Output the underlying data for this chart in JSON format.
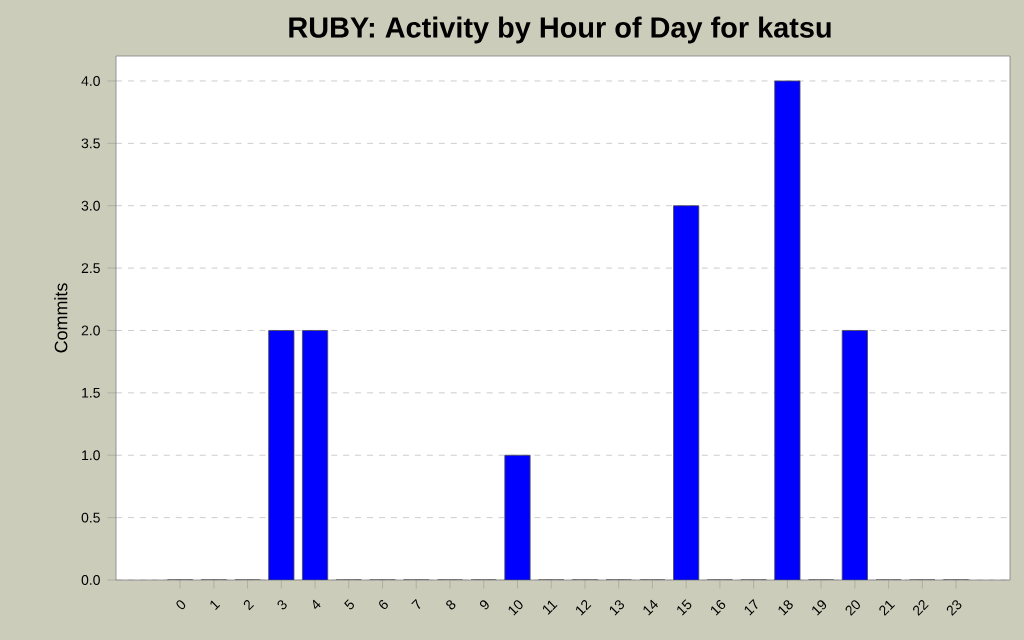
{
  "chart_data": {
    "type": "bar",
    "title": "RUBY: Activity by Hour of Day for katsu",
    "ylabel": "Commits",
    "categories": [
      "0",
      "1",
      "2",
      "3",
      "4",
      "5",
      "6",
      "7",
      "8",
      "9",
      "10",
      "11",
      "12",
      "13",
      "14",
      "15",
      "16",
      "17",
      "18",
      "19",
      "20",
      "21",
      "22",
      "23"
    ],
    "values": [
      0,
      0,
      0,
      2,
      2,
      0,
      0,
      0,
      0,
      0,
      1,
      0,
      0,
      0,
      0,
      3,
      0,
      0,
      4,
      0,
      2,
      0,
      0,
      0
    ],
    "color": "#0000ff",
    "ylim": [
      0,
      4.2
    ],
    "yticks": [
      {
        "value": 0,
        "label": "0.0"
      },
      {
        "value": 0.5,
        "label": "0.5"
      },
      {
        "value": 1,
        "label": "1.0"
      },
      {
        "value": 1.5,
        "label": "1.5"
      },
      {
        "value": 2,
        "label": "2.0"
      },
      {
        "value": 2.5,
        "label": "2.5"
      },
      {
        "value": 3,
        "label": "3.0"
      },
      {
        "value": 3.5,
        "label": "3.5"
      },
      {
        "value": 4,
        "label": "4.0"
      }
    ],
    "grid": "y"
  }
}
